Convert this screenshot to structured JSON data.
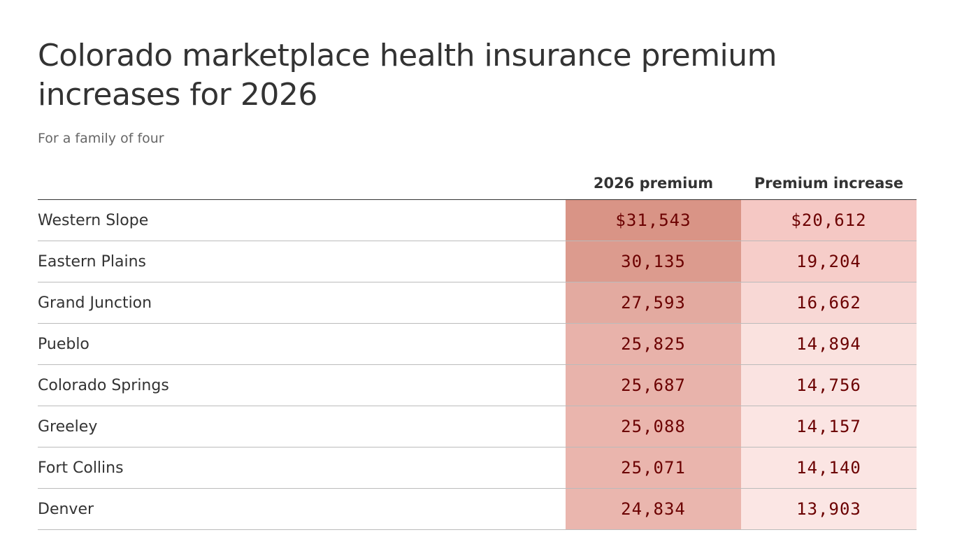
{
  "header": {
    "title": "Colorado marketplace health insurance premium increases for 2026",
    "subtitle": "For a family of four"
  },
  "table": {
    "columns": [
      "",
      "2026 premium",
      "Premium increase"
    ],
    "rows": [
      [
        "Western Slope",
        "$31,543",
        "$20,612"
      ],
      [
        "Eastern Plains",
        "30,135",
        "19,204"
      ],
      [
        "Grand Junction",
        "27,593",
        "16,662"
      ],
      [
        "Pueblo",
        "25,825",
        "14,894"
      ],
      [
        "Colorado Springs",
        "25,687",
        "14,756"
      ],
      [
        "Greeley",
        "25,088",
        "14,157"
      ],
      [
        "Fort Collins",
        "25,071",
        "14,140"
      ],
      [
        "Denver",
        "24,834",
        "13,903"
      ]
    ],
    "cell_colors": [
      [
        "#d99486",
        "#f5c8c4"
      ],
      [
        "#dc9b8e",
        "#f6cdc9"
      ],
      [
        "#e3aaa0",
        "#f8d8d5"
      ],
      [
        "#e8b2aa",
        "#fae2df"
      ],
      [
        "#e8b3ab",
        "#fae3e1"
      ],
      [
        "#eab5ad",
        "#fbe5e3"
      ],
      [
        "#eab5ad",
        "#fbe5e3"
      ],
      [
        "#eab6ae",
        "#fbe6e4"
      ]
    ]
  }
}
